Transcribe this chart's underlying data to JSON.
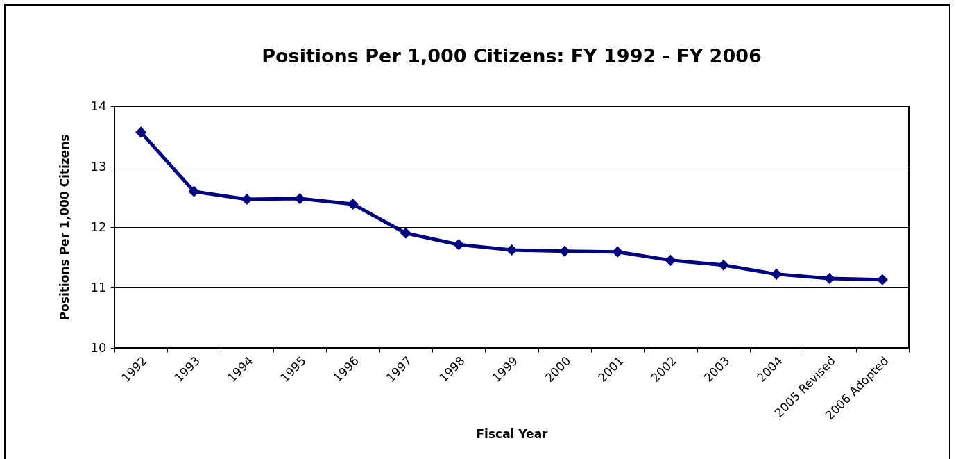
{
  "chart_data": {
    "type": "line",
    "title": "Positions Per 1,000 Citizens: FY 1992 - FY 2006",
    "xlabel": "Fiscal Year",
    "ylabel": "Positions Per 1,000 Citizens",
    "categories": [
      "1992",
      "1993",
      "1994",
      "1995",
      "1996",
      "1997",
      "1998",
      "1999",
      "2000",
      "2001",
      "2002",
      "2003",
      "2004",
      "2005 Revised",
      "2006 Adopted"
    ],
    "series": [
      {
        "color": "#000080",
        "values": [
          13.57,
          12.59,
          12.46,
          12.47,
          12.38,
          11.9,
          11.71,
          11.62,
          11.6,
          11.59,
          11.45,
          11.37,
          11.22,
          11.15,
          11.13
        ]
      }
    ],
    "ylim": [
      10,
      14
    ],
    "yticks": [
      10,
      11,
      12,
      13,
      14
    ],
    "grid": "y",
    "marker": "diamond",
    "line_style": "solid"
  }
}
